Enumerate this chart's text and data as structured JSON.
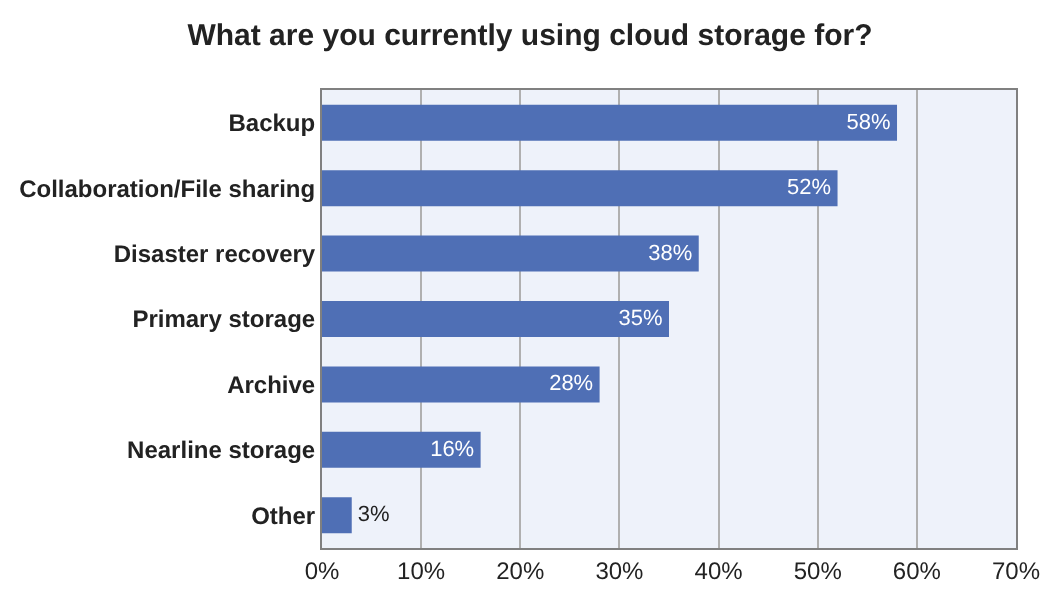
{
  "chart_data": {
    "type": "bar",
    "orientation": "horizontal",
    "title": "What are you currently using cloud storage for?",
    "categories": [
      "Backup",
      "Collaboration/File sharing",
      "Disaster recovery",
      "Primary storage",
      "Archive",
      "Nearline storage",
      "Other"
    ],
    "values": [
      58,
      52,
      38,
      35,
      28,
      16,
      3
    ],
    "value_labels": [
      "58%",
      "52%",
      "38%",
      "35%",
      "28%",
      "16%",
      "3%"
    ],
    "color": "#4f6fb5",
    "xlim": [
      0,
      70
    ],
    "xticks": [
      {
        "value": 0,
        "label": "0%"
      },
      {
        "value": 10,
        "label": "10%"
      },
      {
        "value": 20,
        "label": "20%"
      },
      {
        "value": 30,
        "label": "30%"
      },
      {
        "value": 40,
        "label": "40%"
      },
      {
        "value": 50,
        "label": "50%"
      },
      {
        "value": 60,
        "label": "60%"
      },
      {
        "value": 70,
        "label": "70%"
      }
    ],
    "grid": "x",
    "legend": false
  }
}
